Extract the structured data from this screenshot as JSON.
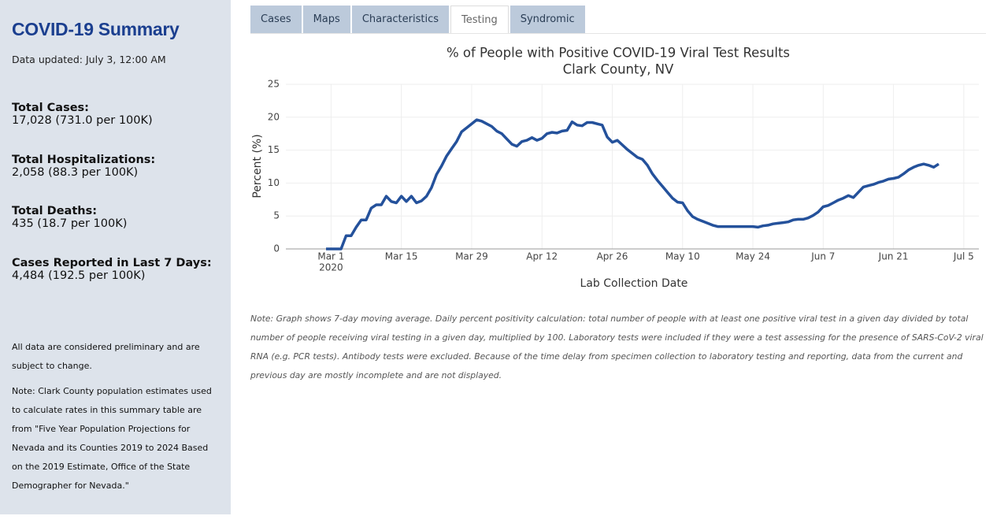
{
  "sidebar": {
    "title": "COVID-19 Summary",
    "updated": "Data updated: July 3, 12:00 AM",
    "stats": [
      {
        "label": "Total Cases:",
        "value": "17,028 (731.0 per 100K)"
      },
      {
        "label": "Total Hospitalizations:",
        "value": "2,058 (88.3 per 100K)"
      },
      {
        "label": "Total Deaths:",
        "value": "435 (18.7 per 100K)"
      },
      {
        "label": "Cases Reported in Last 7 Days:",
        "value": "4,484 (192.5 per 100K)"
      }
    ],
    "notes": [
      "All data are considered preliminary and are subject to change.",
      "Note: Clark County population estimates used to calculate rates in this summary table are from \"Five Year Population Projections for Nevada and its Counties 2019 to 2024 Based on the 2019 Estimate, Office of the State Demographer for Nevada.\""
    ]
  },
  "tabs": [
    {
      "label": "Cases",
      "active": false
    },
    {
      "label": "Maps",
      "active": false
    },
    {
      "label": "Characteristics",
      "active": false
    },
    {
      "label": "Testing",
      "active": true
    },
    {
      "label": "Syndromic",
      "active": false
    }
  ],
  "chart_data": {
    "type": "line",
    "title": "% of People with Positive COVID-19 Viral Test Results",
    "subtitle": "Clark County, NV",
    "x_label": "Lab Collection Date",
    "y_label": "Percent (%)",
    "color": "#24519b",
    "grid": true,
    "xlim": [
      "2020-02-21",
      "2020-07-08"
    ],
    "ylim": [
      0,
      25
    ],
    "yticks": [
      0,
      5,
      10,
      15,
      20,
      25
    ],
    "xticks": [
      {
        "value": "2020-03-01",
        "label": "Mar 1"
      },
      {
        "value": "2020-03-15",
        "label": "Mar 15"
      },
      {
        "value": "2020-03-29",
        "label": "Mar 29"
      },
      {
        "value": "2020-04-12",
        "label": "Apr 12"
      },
      {
        "value": "2020-04-26",
        "label": "Apr 26"
      },
      {
        "value": "2020-05-10",
        "label": "May 10"
      },
      {
        "value": "2020-05-24",
        "label": "May 24"
      },
      {
        "value": "2020-06-07",
        "label": "Jun 7"
      },
      {
        "value": "2020-06-21",
        "label": "Jun 21"
      },
      {
        "value": "2020-07-05",
        "label": "Jul 5"
      }
    ],
    "xtick_year": "2020",
    "x": [
      "2020-02-29",
      "2020-03-01",
      "2020-03-02",
      "2020-03-03",
      "2020-03-04",
      "2020-03-05",
      "2020-03-06",
      "2020-03-07",
      "2020-03-08",
      "2020-03-09",
      "2020-03-10",
      "2020-03-11",
      "2020-03-12",
      "2020-03-13",
      "2020-03-14",
      "2020-03-15",
      "2020-03-16",
      "2020-03-17",
      "2020-03-18",
      "2020-03-19",
      "2020-03-20",
      "2020-03-21",
      "2020-03-22",
      "2020-03-23",
      "2020-03-24",
      "2020-03-25",
      "2020-03-26",
      "2020-03-27",
      "2020-03-28",
      "2020-03-29",
      "2020-03-30",
      "2020-03-31",
      "2020-04-01",
      "2020-04-02",
      "2020-04-03",
      "2020-04-04",
      "2020-04-05",
      "2020-04-06",
      "2020-04-07",
      "2020-04-08",
      "2020-04-09",
      "2020-04-10",
      "2020-04-11",
      "2020-04-12",
      "2020-04-13",
      "2020-04-14",
      "2020-04-15",
      "2020-04-16",
      "2020-04-17",
      "2020-04-18",
      "2020-04-19",
      "2020-04-20",
      "2020-04-21",
      "2020-04-22",
      "2020-04-23",
      "2020-04-24",
      "2020-04-25",
      "2020-04-26",
      "2020-04-27",
      "2020-04-28",
      "2020-04-29",
      "2020-04-30",
      "2020-05-01",
      "2020-05-02",
      "2020-05-03",
      "2020-05-04",
      "2020-05-05",
      "2020-05-06",
      "2020-05-07",
      "2020-05-08",
      "2020-05-09",
      "2020-05-10",
      "2020-05-11",
      "2020-05-12",
      "2020-05-13",
      "2020-05-14",
      "2020-05-15",
      "2020-05-16",
      "2020-05-17",
      "2020-05-18",
      "2020-05-20",
      "2020-05-22",
      "2020-05-24",
      "2020-05-25",
      "2020-05-26",
      "2020-05-27",
      "2020-05-28",
      "2020-05-29",
      "2020-05-30",
      "2020-05-31",
      "2020-06-01",
      "2020-06-02",
      "2020-06-03",
      "2020-06-04",
      "2020-06-05",
      "2020-06-06",
      "2020-06-07",
      "2020-06-08",
      "2020-06-09",
      "2020-06-10",
      "2020-06-11",
      "2020-06-12",
      "2020-06-13",
      "2020-06-14",
      "2020-06-15",
      "2020-06-16",
      "2020-06-17",
      "2020-06-18",
      "2020-06-19",
      "2020-06-20",
      "2020-06-21",
      "2020-06-22",
      "2020-06-23",
      "2020-06-24",
      "2020-06-25",
      "2020-06-26",
      "2020-06-27",
      "2020-06-28",
      "2020-06-29",
      "2020-06-30"
    ],
    "values": [
      0,
      0,
      0,
      0,
      2.0,
      2.0,
      3.3,
      4.4,
      4.4,
      6.2,
      6.7,
      6.7,
      8.0,
      7.2,
      7.0,
      8.0,
      7.2,
      8.0,
      7.0,
      7.3,
      8.0,
      9.3,
      11.3,
      12.6,
      14.1,
      15.2,
      16.3,
      17.8,
      18.4,
      19.0,
      19.6,
      19.4,
      19.0,
      18.6,
      17.9,
      17.5,
      16.7,
      15.9,
      15.6,
      16.3,
      16.5,
      16.9,
      16.5,
      16.8,
      17.5,
      17.7,
      17.6,
      17.9,
      18.0,
      19.3,
      18.8,
      18.7,
      19.2,
      19.2,
      19.0,
      18.8,
      17.0,
      16.2,
      16.5,
      15.8,
      15.1,
      14.5,
      13.9,
      13.6,
      12.7,
      11.4,
      10.4,
      9.5,
      8.6,
      7.7,
      7.1,
      7.0,
      5.8,
      4.9,
      4.5,
      4.2,
      3.9,
      3.6,
      3.4,
      3.4,
      3.4,
      3.4,
      3.4,
      3.3,
      3.5,
      3.6,
      3.8,
      3.9,
      4.0,
      4.1,
      4.4,
      4.5,
      4.5,
      4.7,
      5.1,
      5.6,
      6.4,
      6.6,
      7.0,
      7.4,
      7.7,
      8.1,
      7.8,
      8.6,
      9.4,
      9.6,
      9.8,
      10.1,
      10.3,
      10.6,
      10.7,
      10.9,
      11.4,
      12.0,
      12.4,
      12.7,
      12.9,
      12.7,
      12.4,
      12.9
    ]
  },
  "note": "Note: Graph shows 7-day moving average. Daily percent positivity calculation: total number of people with at least one positive viral test in a given day divided by total number of people receiving viral testing in a given day, multiplied by 100. Laboratory tests were included if they were a test assessing for the presence of SARS-CoV-2 viral RNA (e.g. PCR tests). Antibody tests were excluded. Because of the time delay from specimen collection to laboratory testing and reporting, data from the current and previous day are mostly incomplete and are not displayed."
}
